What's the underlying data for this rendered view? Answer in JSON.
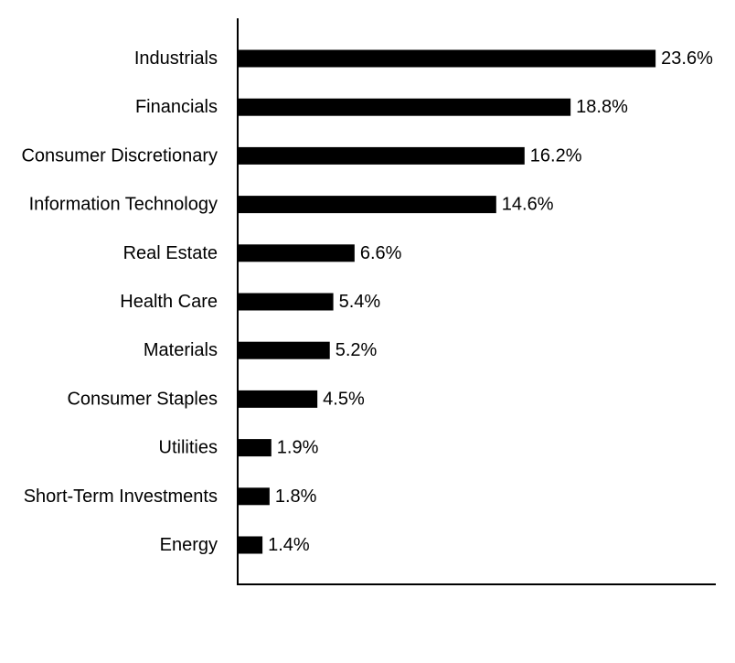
{
  "chart_data": {
    "type": "bar",
    "orientation": "horizontal",
    "categories": [
      "Industrials",
      "Financials",
      "Consumer Discretionary",
      "Information Technology",
      "Real Estate",
      "Health Care",
      "Materials",
      "Consumer Staples",
      "Utilities",
      "Short-Term Investments",
      "Energy"
    ],
    "values": [
      23.6,
      18.8,
      16.2,
      14.6,
      6.6,
      5.4,
      5.2,
      4.5,
      1.9,
      1.8,
      1.4
    ],
    "data_labels": [
      "23.6%",
      "18.8%",
      "16.2%",
      "14.6%",
      "6.6%",
      "5.4%",
      "5.2%",
      "4.5%",
      "1.9%",
      "1.8%",
      "1.4%"
    ],
    "title": "",
    "xlabel": "",
    "ylabel": "",
    "xlim": [
      0,
      27
    ],
    "grid": false,
    "legend": "none",
    "bar_color": "#000000",
    "axis_color": "#000000",
    "text_color": "#000000"
  }
}
